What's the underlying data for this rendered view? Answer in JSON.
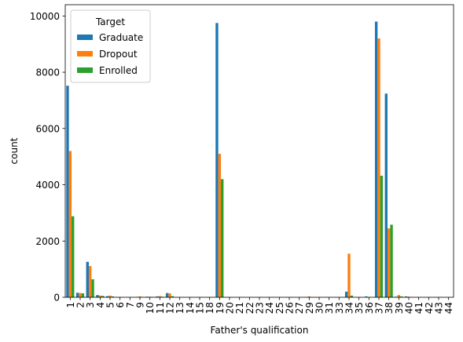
{
  "chart_data": {
    "type": "bar",
    "xlabel": "Father's qualification",
    "ylabel": "count",
    "ylim": [
      0,
      10400
    ],
    "yticks": [
      0,
      2000,
      4000,
      6000,
      8000,
      10000
    ],
    "grid": false,
    "legend": {
      "title": "Target",
      "placement": "top-left"
    },
    "categories": [
      "1",
      "2",
      "3",
      "4",
      "5",
      "6",
      "7",
      "9",
      "10",
      "11",
      "12",
      "13",
      "14",
      "15",
      "18",
      "19",
      "20",
      "21",
      "22",
      "23",
      "24",
      "25",
      "26",
      "27",
      "29",
      "30",
      "31",
      "33",
      "34",
      "35",
      "36",
      "37",
      "38",
      "39",
      "40",
      "41",
      "42",
      "43",
      "44"
    ],
    "series": [
      {
        "name": "Graduate",
        "color": "#1f77b4",
        "values": [
          7520,
          160,
          1260,
          80,
          40,
          10,
          5,
          15,
          20,
          30,
          150,
          5,
          5,
          5,
          5,
          9750,
          5,
          5,
          5,
          5,
          5,
          5,
          5,
          5,
          10,
          5,
          5,
          5,
          200,
          5,
          30,
          9800,
          7240,
          20,
          30,
          5,
          5,
          5,
          5
        ]
      },
      {
        "name": "Dropout",
        "color": "#ff7f0e",
        "values": [
          5200,
          150,
          1110,
          60,
          60,
          10,
          5,
          30,
          20,
          40,
          140,
          5,
          5,
          5,
          5,
          5100,
          5,
          5,
          5,
          5,
          5,
          5,
          5,
          5,
          30,
          5,
          5,
          5,
          1550,
          10,
          10,
          9200,
          2450,
          80,
          20,
          5,
          5,
          5,
          5
        ]
      },
      {
        "name": "Enrolled",
        "color": "#2ca02c",
        "values": [
          2880,
          140,
          640,
          50,
          30,
          5,
          5,
          10,
          15,
          20,
          40,
          5,
          5,
          5,
          5,
          4200,
          5,
          5,
          5,
          5,
          5,
          5,
          5,
          5,
          5,
          5,
          5,
          5,
          60,
          5,
          5,
          4320,
          2580,
          30,
          10,
          5,
          5,
          5,
          5
        ]
      }
    ]
  }
}
